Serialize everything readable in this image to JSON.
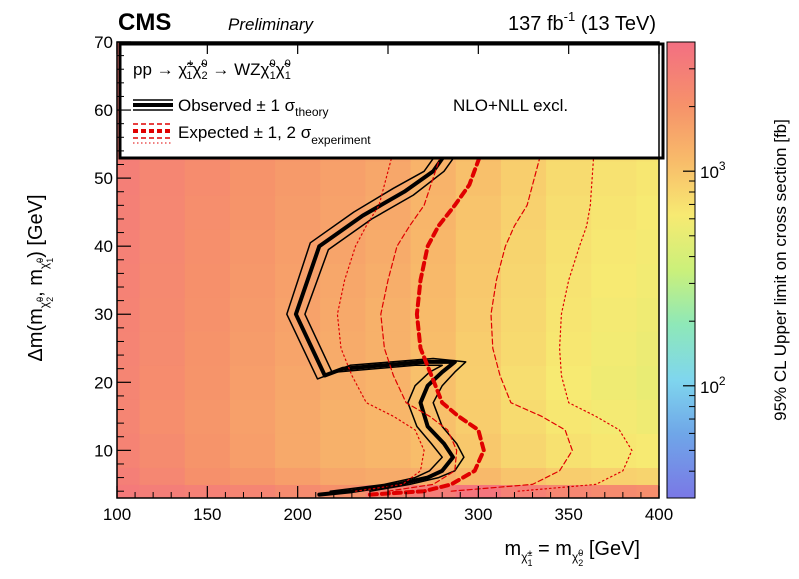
{
  "header": {
    "experiment": "CMS",
    "status": "Preliminary",
    "lumi_value": "137 fb",
    "lumi_exp": "-1",
    "lumi_energy": " (13 TeV)"
  },
  "legend": {
    "process_lhs": "pp → ",
    "process_mid": " → WZ",
    "observed_label": "Observed ± 1 σ",
    "observed_sub": "theory",
    "expected_label": "Expected ± 1, 2 σ",
    "expected_sub": "experiment",
    "xsec_note": "NLO+NLL excl."
  },
  "colors": {
    "observed": "#000000",
    "expected": "#e00000",
    "frame": "#000000"
  },
  "chart_data": {
    "type": "heatmap",
    "xlabel": "m = m [GeV]",
    "ylabel": "Δm(m, m) [GeV]",
    "zlabel": "95% CL Upper limit on cross section [fb]",
    "xlim": [
      100,
      400
    ],
    "ylim": [
      3,
      70
    ],
    "zlim": [
      30,
      4000
    ],
    "zscale": "log",
    "x_ticks": [
      100,
      150,
      200,
      250,
      300,
      350,
      400
    ],
    "y_ticks": [
      10,
      20,
      30,
      40,
      50,
      60,
      70
    ],
    "z_ticks": [
      {
        "label": "10",
        "exp": "2",
        "value": 100
      },
      {
        "label": "10",
        "exp": "3",
        "value": 1000
      }
    ],
    "grid": false,
    "legend_position": "top",
    "heatmap": {
      "x_edges": [
        100,
        112.5,
        137.5,
        162.5,
        187.5,
        212.5,
        237.5,
        262.5,
        287.5,
        312.5,
        337.5,
        362.5,
        387.5,
        400
      ],
      "y_edges": [
        3,
        5,
        7.5,
        12.5,
        17.5,
        22.5,
        27.5,
        32.5,
        37.5,
        42.5,
        47.5,
        52.5,
        57.5,
        62.5,
        70
      ],
      "values_fb": [
        [
          3200,
          3000,
          2800,
          2600,
          2300,
          2100,
          2600,
          3000,
          3500,
          2800,
          2500,
          2300,
          2200
        ],
        [
          2900,
          2500,
          2100,
          1900,
          1700,
          1500,
          1400,
          1350,
          1150,
          1000,
          900,
          850,
          820
        ],
        [
          2700,
          2300,
          1950,
          1700,
          1450,
          1300,
          1200,
          1100,
          950,
          800,
          700,
          650,
          620
        ],
        [
          2600,
          2200,
          1900,
          1650,
          1450,
          1300,
          1200,
          1050,
          900,
          750,
          650,
          600,
          560
        ],
        [
          2600,
          2250,
          1950,
          1700,
          1500,
          1350,
          1250,
          1050,
          880,
          720,
          620,
          560,
          520
        ],
        [
          2650,
          2300,
          2000,
          1750,
          1550,
          1400,
          1300,
          1100,
          900,
          760,
          650,
          580,
          540
        ],
        [
          2700,
          2350,
          2050,
          1800,
          1600,
          1450,
          1300,
          1120,
          930,
          780,
          660,
          600,
          560
        ],
        [
          2750,
          2400,
          2100,
          1850,
          1650,
          1500,
          1350,
          1150,
          950,
          800,
          680,
          620,
          580
        ],
        [
          2800,
          2450,
          2150,
          1900,
          1700,
          1550,
          1400,
          1180,
          980,
          820,
          700,
          640,
          600
        ],
        [
          2850,
          2500,
          2200,
          1950,
          1750,
          1600,
          1450,
          1220,
          1000,
          850,
          720,
          660,
          620
        ],
        [
          2900,
          2550,
          2250,
          2000,
          1800,
          1650,
          1500,
          1250,
          1050,
          880,
          750,
          690,
          650
        ],
        [
          2950,
          2600,
          2300,
          2050,
          1850,
          1700,
          1550,
          1300,
          1100,
          920,
          780,
          720,
          680
        ],
        [
          3000,
          2650,
          2350,
          2100,
          1900,
          1750,
          1600,
          1350,
          1150,
          960,
          820,
          760,
          720
        ],
        [
          3100,
          2750,
          2450,
          2200,
          2000,
          1850,
          1700,
          1450,
          1250,
          1050,
          900,
          830,
          790
        ]
      ]
    },
    "series": [
      {
        "name": "Observed",
        "role": "observed",
        "color": "#000000",
        "style": "solid",
        "x": [
          212,
          230,
          255,
          272,
          280,
          286,
          281,
          272,
          268,
          272,
          280,
          287,
          270,
          225,
          215,
          199,
          212,
          236,
          259,
          275,
          283
        ],
        "y": [
          3.5,
          4,
          5,
          6,
          7,
          9,
          11,
          13.5,
          17,
          19.5,
          21.5,
          23,
          23,
          22,
          21,
          30,
          40,
          44.5,
          48,
          51,
          54
        ]
      },
      {
        "name": "Observed +1 sigma theory",
        "role": "observed-band",
        "color": "#000000",
        "style": "thin",
        "x": [
          240,
          262,
          278,
          287,
          292,
          288,
          280,
          275,
          280,
          287,
          293,
          275,
          229,
          219,
          204,
          217,
          241,
          264,
          281,
          289
        ],
        "y": [
          4,
          5,
          6,
          7,
          9,
          11,
          13.5,
          17,
          19.5,
          21.5,
          23,
          23.5,
          22.5,
          21.5,
          30,
          39.5,
          44,
          47.5,
          51,
          54
        ]
      },
      {
        "name": "Observed -1 sigma theory",
        "role": "observed-band",
        "color": "#000000",
        "style": "thin",
        "x": [
          218,
          248,
          265,
          273,
          280,
          274,
          266,
          261,
          265,
          273,
          280,
          265,
          221,
          211,
          194,
          207,
          231,
          253,
          270,
          278
        ],
        "y": [
          4,
          5,
          6,
          7,
          9,
          11,
          13.5,
          17,
          19.5,
          21.5,
          22.5,
          22.5,
          21.5,
          20.5,
          30,
          40.5,
          45,
          48.5,
          51,
          54
        ]
      },
      {
        "name": "Expected",
        "role": "expected",
        "color": "#e00000",
        "style": "dashed",
        "x": [
          240,
          270,
          285,
          298,
          303,
          300,
          289,
          280,
          274,
          268,
          266,
          268,
          272,
          278,
          287,
          295,
          302
        ],
        "y": [
          3.5,
          4,
          5,
          7,
          10,
          13,
          15,
          17,
          21,
          25,
          30,
          35,
          40,
          43,
          46,
          49,
          54
        ]
      },
      {
        "name": "Expected -1 sigma experiment",
        "role": "expected-band",
        "color": "#e00000",
        "style": "thin-dashed",
        "x": [
          250,
          275,
          287,
          288,
          283,
          273,
          260,
          253,
          248,
          246,
          250,
          255,
          262,
          270,
          280
        ],
        "y": [
          4,
          5,
          7,
          10,
          13,
          15,
          17,
          21,
          25,
          30,
          35,
          40,
          43,
          46,
          54
        ]
      },
      {
        "name": "Expected +1 sigma experiment",
        "role": "expected-band",
        "color": "#e00000",
        "style": "thin-dashed",
        "x": [
          285,
          330,
          345,
          352,
          348,
          335,
          318,
          312,
          308,
          307,
          310,
          315,
          320,
          327,
          335
        ],
        "y": [
          4,
          5,
          7,
          10,
          13,
          15,
          17,
          21,
          25,
          30,
          35,
          40,
          43,
          46,
          54
        ]
      },
      {
        "name": "Expected -2 sigma experiment",
        "role": "expected-band",
        "color": "#e00000",
        "style": "dotted",
        "x": [
          232,
          258,
          268,
          270,
          265,
          253,
          238,
          230,
          224,
          222,
          226,
          232,
          238,
          245,
          253
        ],
        "y": [
          4,
          5,
          7,
          10,
          13,
          15,
          17,
          21,
          25,
          30,
          35,
          40,
          43,
          46,
          54
        ]
      },
      {
        "name": "Expected +2 sigma experiment",
        "role": "expected-band",
        "color": "#e00000",
        "style": "dotted",
        "x": [
          322,
          365,
          380,
          385,
          378,
          365,
          350,
          346,
          345,
          346,
          350,
          356,
          360,
          362,
          364
        ],
        "y": [
          4,
          5,
          7,
          10,
          13,
          15,
          17,
          21,
          25,
          30,
          35,
          40,
          43,
          46,
          54
        ]
      }
    ]
  }
}
